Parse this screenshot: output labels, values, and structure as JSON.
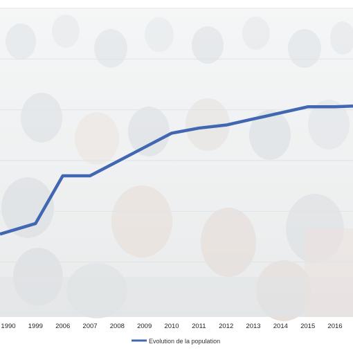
{
  "chart_data": {
    "type": "line",
    "title": "",
    "xlabel": "",
    "ylabel": "",
    "x": [
      "1990",
      "1999",
      "2006",
      "2007",
      "2008",
      "2009",
      "2010",
      "2011",
      "2012",
      "2013",
      "2014",
      "2015",
      "2016"
    ],
    "series": [
      {
        "name": "Evolution de la population",
        "values": [
          80,
          88,
          135,
          135,
          149,
          163,
          177,
          182,
          185,
          191,
          197,
          203,
          203
        ]
      }
    ],
    "ylim": [
      0,
      300
    ],
    "grid": true,
    "y_axis_labels_visible": false,
    "background": "faded crowd photograph",
    "legend_position": "bottom",
    "colors": {
      "line": "#4267b2",
      "gridline": "#dfe3e8",
      "axis_text": "#222222"
    }
  }
}
